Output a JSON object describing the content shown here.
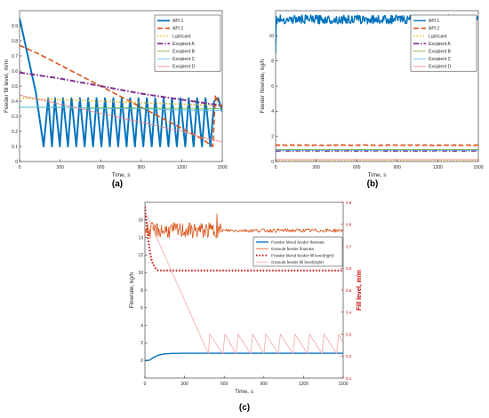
{
  "panels": {
    "a": "(a)",
    "b": "(b)",
    "c": "(c)"
  },
  "chart_data": [
    {
      "id": "a",
      "type": "line",
      "xlabel": "Time, s",
      "ylabel": "Feeder fill level, m/m",
      "xlim": [
        0,
        1500
      ],
      "ylim": [
        0,
        1.0
      ],
      "xticks": [
        0,
        300,
        600,
        900,
        1200,
        1500
      ],
      "yticks": [
        0,
        0.1,
        0.2,
        0.3,
        0.4,
        0.5,
        0.6,
        0.7,
        0.8,
        0.9
      ],
      "legend_position": "top-right",
      "grid": false,
      "series": [
        {
          "name": "API 1",
          "color": "#0072BD",
          "style": "solid",
          "width": 2,
          "x": [
            0,
            120,
            178,
            212,
            240,
            262,
            298,
            322,
            358,
            384,
            420,
            446,
            482,
            508,
            544,
            570,
            606,
            632,
            668,
            694,
            730,
            756,
            792,
            818,
            854,
            880,
            916,
            942,
            978,
            1004,
            1040,
            1066,
            1102,
            1128,
            1164,
            1190,
            1226,
            1252,
            1288,
            1314,
            1350,
            1376,
            1412,
            1440,
            1470,
            1500
          ],
          "y": [
            0.95,
            0.46,
            0.1,
            0.42,
            0.1,
            0.42,
            0.1,
            0.42,
            0.1,
            0.42,
            0.1,
            0.42,
            0.1,
            0.42,
            0.1,
            0.42,
            0.1,
            0.42,
            0.1,
            0.42,
            0.1,
            0.42,
            0.1,
            0.42,
            0.1,
            0.42,
            0.1,
            0.42,
            0.1,
            0.42,
            0.1,
            0.42,
            0.1,
            0.42,
            0.1,
            0.42,
            0.1,
            0.42,
            0.1,
            0.42,
            0.1,
            0.42,
            0.1,
            0.4,
            0.42,
            0.33
          ]
        },
        {
          "name": "API 2",
          "color": "#D95319",
          "style": "dash",
          "width": 1.6,
          "x": [
            0,
            150,
            300,
            450,
            600,
            750,
            900,
            1050,
            1200,
            1350,
            1430,
            1450,
            1470,
            1500
          ],
          "y": [
            0.77,
            0.71,
            0.64,
            0.57,
            0.5,
            0.43,
            0.36,
            0.29,
            0.22,
            0.15,
            0.1,
            0.44,
            0.4,
            0.36
          ]
        },
        {
          "name": "Lubricant",
          "color": "#EDB120",
          "style": "dot",
          "width": 1.6,
          "x": [
            0,
            1500
          ],
          "y": [
            0.42,
            0.37
          ]
        },
        {
          "name": "Excipient A",
          "color": "#7E2F8E",
          "style": "dashdot",
          "width": 2,
          "x": [
            0,
            300,
            600,
            900,
            1200,
            1500
          ],
          "y": [
            0.59,
            0.55,
            0.5,
            0.45,
            0.41,
            0.37
          ]
        },
        {
          "name": "Excipient B",
          "color": "#77AC30",
          "style": "solid",
          "width": 0.8,
          "x": [
            0,
            1500
          ],
          "y": [
            0.36,
            0.35
          ]
        },
        {
          "name": "Excipient C",
          "color": "#4DBEEE",
          "style": "solid",
          "width": 0.8,
          "x": [
            0,
            300,
            600,
            900,
            1200,
            1500
          ],
          "y": [
            0.36,
            0.36,
            0.35,
            0.35,
            0.34,
            0.34
          ]
        },
        {
          "name": "Excipient D",
          "color": "#E88080",
          "style": "solid",
          "width": 0.8,
          "x": [
            0,
            150,
            300,
            450,
            600,
            750,
            900,
            1050,
            1200,
            1350,
            1500
          ],
          "y": [
            0.44,
            0.41,
            0.38,
            0.35,
            0.32,
            0.29,
            0.26,
            0.23,
            0.2,
            0.16,
            0.13
          ]
        }
      ]
    },
    {
      "id": "b",
      "type": "line",
      "xlabel": "Time, s",
      "ylabel": "Feeder flowrate, kg/h",
      "xlim": [
        0,
        1500
      ],
      "ylim": [
        0,
        12
      ],
      "xticks": [
        0,
        300,
        600,
        900,
        1200,
        1500
      ],
      "yticks": [
        0,
        2,
        4,
        6,
        8,
        10
      ],
      "legend_position": "top-right",
      "grid": false,
      "series": [
        {
          "name": "API 1",
          "color": "#0072BD",
          "style": "solid",
          "width": 1.4,
          "base": 11.3,
          "noise": 0.35,
          "start": 8.6
        },
        {
          "name": "API 2",
          "color": "#D95319",
          "style": "dash",
          "width": 1.6,
          "base": 1.3,
          "noise": 0.03
        },
        {
          "name": "Lubricant",
          "color": "#EDB120",
          "style": "dot",
          "width": 1.6,
          "base": 0.12,
          "noise": 0.0
        },
        {
          "name": "Excipient A",
          "color": "#7E2F8E",
          "style": "dashdot",
          "width": 1.6,
          "base": 0.85,
          "noise": 0.02
        },
        {
          "name": "Excipient B",
          "color": "#77AC30",
          "style": "solid",
          "width": 0.8,
          "base": 0.95,
          "noise": 0.0
        },
        {
          "name": "Excipient C",
          "color": "#4DBEEE",
          "style": "solid",
          "width": 0.8,
          "base": 0.9,
          "noise": 0.0
        },
        {
          "name": "Excipient D",
          "color": "#E88080",
          "style": "solid",
          "width": 0.8,
          "base": 0.15,
          "noise": 0.0
        }
      ]
    },
    {
      "id": "c",
      "type": "line",
      "xlabel": "Time, s",
      "ylabel": "Flowrate, kg/h",
      "ylabel_right": "Fill level, m/m",
      "xlim": [
        0,
        1500
      ],
      "ylim": [
        -2,
        18
      ],
      "ylim_right": [
        0.1,
        0.9
      ],
      "xticks": [
        0,
        300,
        600,
        900,
        1200,
        1500
      ],
      "yticks": [
        0,
        2,
        4,
        6,
        8,
        10,
        12,
        14,
        16
      ],
      "yticks_right": [
        0.1,
        0.2,
        0.3,
        0.4,
        0.5,
        0.6,
        0.7,
        0.8,
        0.9
      ],
      "legend_position": "right",
      "grid": false,
      "series": [
        {
          "name": "Powder blend feeder flowrate",
          "axis": "left",
          "color": "#0072BD",
          "style": "solid",
          "width": 1.4,
          "x": [
            0,
            30,
            60,
            100,
            150,
            200,
            300,
            400,
            500,
            600,
            900,
            1200,
            1500
          ],
          "y": [
            0,
            0,
            0.3,
            0.6,
            0.75,
            0.8,
            0.82,
            0.82,
            0.82,
            0.82,
            0.82,
            0.82,
            0.82
          ]
        },
        {
          "name": "Granule feeder flowrate",
          "axis": "left",
          "color": "#D95319",
          "style": "solid",
          "width": 0.8,
          "base": 14.8,
          "noise": 0.9,
          "noise_after": 0.2,
          "settle": 580,
          "spike_x": 545,
          "spike_y": 16.7
        },
        {
          "name": "Powder blend feeder fill level(right)",
          "axis": "right",
          "color": "#CC0000",
          "style": "dot",
          "width": 2,
          "x": [
            0,
            10,
            20,
            30,
            40,
            50,
            60,
            80,
            100,
            150,
            300,
            600,
            900,
            1200,
            1500
          ],
          "y": [
            0.88,
            0.82,
            0.76,
            0.71,
            0.67,
            0.64,
            0.62,
            0.6,
            0.59,
            0.59,
            0.59,
            0.59,
            0.59,
            0.59,
            0.59
          ]
        },
        {
          "name": "Granule feeder fill level(right)",
          "axis": "right",
          "color": "#F4A6A6",
          "style": "solid",
          "width": 0.8,
          "x": [
            0,
            480,
            490,
            590,
            605,
            690,
            705,
            800,
            815,
            900,
            915,
            1010,
            1025,
            1120,
            1135,
            1230,
            1245,
            1340,
            1355,
            1450,
            1465,
            1500
          ],
          "y": [
            0.86,
            0.21,
            0.3,
            0.21,
            0.3,
            0.21,
            0.3,
            0.21,
            0.3,
            0.21,
            0.3,
            0.21,
            0.3,
            0.21,
            0.3,
            0.21,
            0.3,
            0.21,
            0.3,
            0.21,
            0.3,
            0.26
          ]
        }
      ]
    }
  ]
}
